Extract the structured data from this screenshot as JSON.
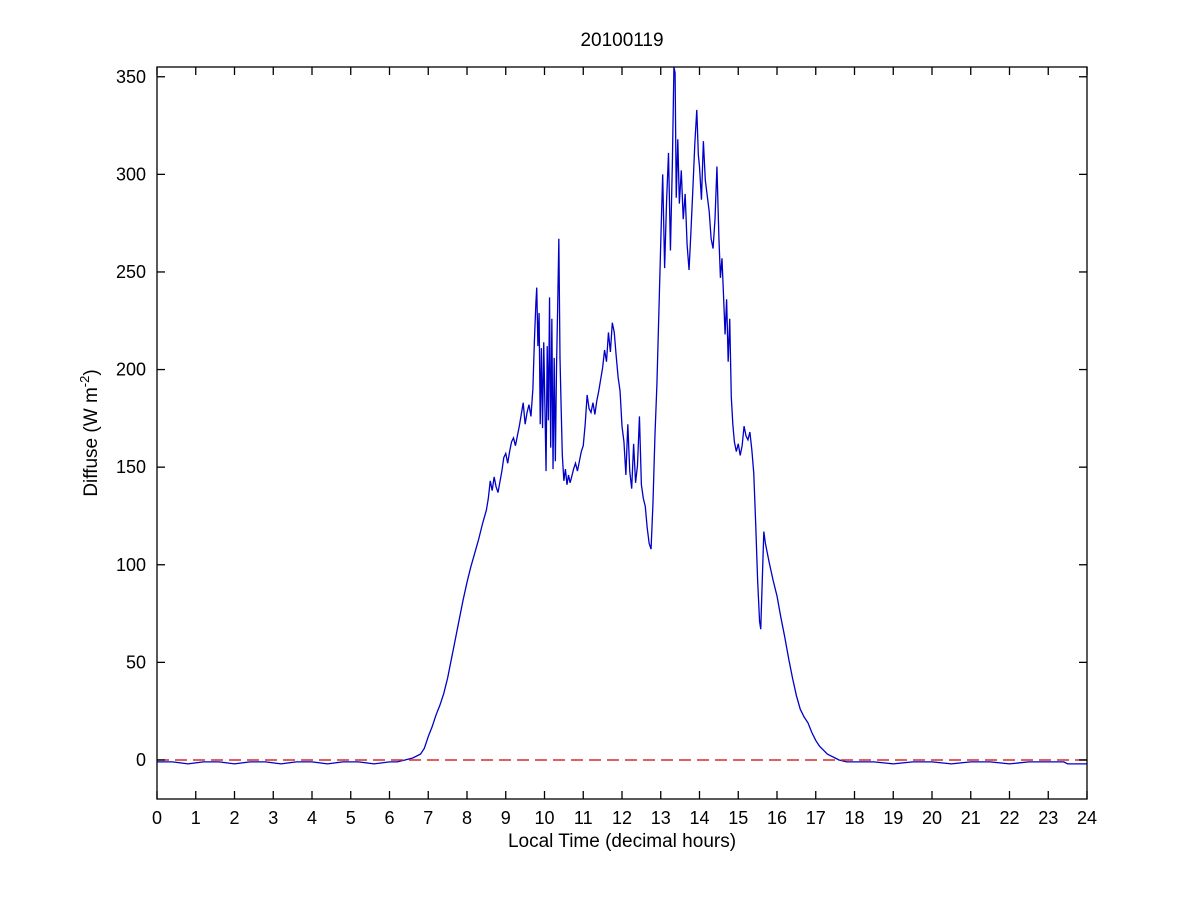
{
  "figure_title": "20100119",
  "chart_data": {
    "type": "line",
    "title": "20100119",
    "xlabel": "Local Time (decimal hours)",
    "ylabel_prefix": "Diffuse (W m",
    "ylabel_sup": "-2",
    "ylabel_suffix": ")",
    "xlim": [
      0,
      24
    ],
    "ylim": [
      -20,
      355
    ],
    "xticks": [
      0,
      1,
      2,
      3,
      4,
      5,
      6,
      7,
      8,
      9,
      10,
      11,
      12,
      13,
      14,
      15,
      16,
      17,
      18,
      19,
      20,
      21,
      22,
      23,
      24
    ],
    "yticks": [
      0,
      50,
      100,
      150,
      200,
      250,
      300,
      350
    ],
    "grid": false,
    "legend": "none",
    "frame_color": "#000000",
    "series": [
      {
        "name": "Diffuse irradiance",
        "color": "#0000C8",
        "line_style": "solid",
        "points": [
          [
            0,
            -1
          ],
          [
            0.4,
            -1
          ],
          [
            0.8,
            -2
          ],
          [
            1.2,
            -1
          ],
          [
            1.6,
            -1
          ],
          [
            2,
            -2
          ],
          [
            2.4,
            -1
          ],
          [
            2.8,
            -1
          ],
          [
            3.2,
            -2
          ],
          [
            3.6,
            -1
          ],
          [
            4,
            -1
          ],
          [
            4.4,
            -2
          ],
          [
            4.8,
            -1
          ],
          [
            5.2,
            -1
          ],
          [
            5.6,
            -2
          ],
          [
            6,
            -1
          ],
          [
            6.2,
            -1
          ],
          [
            6.4,
            0
          ],
          [
            6.6,
            1
          ],
          [
            6.8,
            3
          ],
          [
            6.9,
            6
          ],
          [
            7,
            12
          ],
          [
            7.1,
            17
          ],
          [
            7.2,
            23
          ],
          [
            7.3,
            28
          ],
          [
            7.4,
            34
          ],
          [
            7.5,
            42
          ],
          [
            7.6,
            52
          ],
          [
            7.7,
            62
          ],
          [
            7.8,
            72
          ],
          [
            7.9,
            82
          ],
          [
            8,
            91
          ],
          [
            8.1,
            99
          ],
          [
            8.2,
            106
          ],
          [
            8.3,
            113
          ],
          [
            8.4,
            121
          ],
          [
            8.5,
            128
          ],
          [
            8.55,
            134
          ],
          [
            8.6,
            143
          ],
          [
            8.65,
            138
          ],
          [
            8.7,
            145
          ],
          [
            8.75,
            140
          ],
          [
            8.8,
            137
          ],
          [
            8.9,
            148
          ],
          [
            8.95,
            155
          ],
          [
            9,
            157
          ],
          [
            9.05,
            152
          ],
          [
            9.1,
            158
          ],
          [
            9.15,
            163
          ],
          [
            9.2,
            165
          ],
          [
            9.25,
            161
          ],
          [
            9.3,
            166
          ],
          [
            9.35,
            171
          ],
          [
            9.4,
            177
          ],
          [
            9.45,
            183
          ],
          [
            9.5,
            172
          ],
          [
            9.55,
            178
          ],
          [
            9.6,
            182
          ],
          [
            9.65,
            176
          ],
          [
            9.7,
            190
          ],
          [
            9.74,
            215
          ],
          [
            9.78,
            235
          ],
          [
            9.8,
            242
          ],
          [
            9.83,
            212
          ],
          [
            9.86,
            229
          ],
          [
            9.89,
            172
          ],
          [
            9.92,
            211
          ],
          [
            9.95,
            170
          ],
          [
            9.98,
            214
          ],
          [
            10.01,
            182
          ],
          [
            10.04,
            148
          ],
          [
            10.07,
            212
          ],
          [
            10.1,
            174
          ],
          [
            10.13,
            237
          ],
          [
            10.16,
            160
          ],
          [
            10.19,
            226
          ],
          [
            10.22,
            149
          ],
          [
            10.25,
            206
          ],
          [
            10.28,
            153
          ],
          [
            10.31,
            201
          ],
          [
            10.34,
            232
          ],
          [
            10.37,
            267
          ],
          [
            10.4,
            206
          ],
          [
            10.43,
            180
          ],
          [
            10.46,
            156
          ],
          [
            10.5,
            143
          ],
          [
            10.54,
            149
          ],
          [
            10.58,
            141
          ],
          [
            10.62,
            146
          ],
          [
            10.66,
            142
          ],
          [
            10.7,
            145
          ],
          [
            10.75,
            149
          ],
          [
            10.8,
            152
          ],
          [
            10.85,
            148
          ],
          [
            10.9,
            153
          ],
          [
            10.95,
            158
          ],
          [
            11,
            161
          ],
          [
            11.05,
            172
          ],
          [
            11.1,
            187
          ],
          [
            11.15,
            180
          ],
          [
            11.2,
            178
          ],
          [
            11.25,
            183
          ],
          [
            11.3,
            177
          ],
          [
            11.35,
            184
          ],
          [
            11.4,
            189
          ],
          [
            11.45,
            195
          ],
          [
            11.5,
            201
          ],
          [
            11.55,
            210
          ],
          [
            11.6,
            204
          ],
          [
            11.65,
            219
          ],
          [
            11.7,
            209
          ],
          [
            11.75,
            224
          ],
          [
            11.8,
            219
          ],
          [
            11.85,
            207
          ],
          [
            11.9,
            196
          ],
          [
            11.95,
            189
          ],
          [
            12,
            171
          ],
          [
            12.05,
            163
          ],
          [
            12.1,
            146
          ],
          [
            12.15,
            172
          ],
          [
            12.2,
            148
          ],
          [
            12.25,
            139
          ],
          [
            12.3,
            162
          ],
          [
            12.35,
            142
          ],
          [
            12.4,
            151
          ],
          [
            12.45,
            176
          ],
          [
            12.5,
            141
          ],
          [
            12.55,
            134
          ],
          [
            12.6,
            130
          ],
          [
            12.65,
            119
          ],
          [
            12.7,
            111
          ],
          [
            12.75,
            108
          ],
          [
            12.8,
            132
          ],
          [
            12.85,
            166
          ],
          [
            12.9,
            192
          ],
          [
            12.95,
            228
          ],
          [
            13,
            265
          ],
          [
            13.05,
            300
          ],
          [
            13.1,
            252
          ],
          [
            13.15,
            286
          ],
          [
            13.2,
            311
          ],
          [
            13.25,
            261
          ],
          [
            13.3,
            306
          ],
          [
            13.34,
            355
          ],
          [
            13.37,
            352
          ],
          [
            13.4,
            288
          ],
          [
            13.44,
            318
          ],
          [
            13.48,
            285
          ],
          [
            13.53,
            302
          ],
          [
            13.58,
            277
          ],
          [
            13.63,
            290
          ],
          [
            13.68,
            264
          ],
          [
            13.73,
            251
          ],
          [
            13.78,
            271
          ],
          [
            13.83,
            293
          ],
          [
            13.88,
            316
          ],
          [
            13.93,
            333
          ],
          [
            13.97,
            310
          ],
          [
            14,
            304
          ],
          [
            14.05,
            287
          ],
          [
            14.1,
            317
          ],
          [
            14.15,
            297
          ],
          [
            14.2,
            289
          ],
          [
            14.25,
            281
          ],
          [
            14.3,
            267
          ],
          [
            14.35,
            262
          ],
          [
            14.4,
            277
          ],
          [
            14.45,
            304
          ],
          [
            14.5,
            268
          ],
          [
            14.54,
            247
          ],
          [
            14.58,
            257
          ],
          [
            14.62,
            238
          ],
          [
            14.66,
            218
          ],
          [
            14.7,
            236
          ],
          [
            14.74,
            204
          ],
          [
            14.78,
            226
          ],
          [
            14.82,
            186
          ],
          [
            14.86,
            172
          ],
          [
            14.9,
            163
          ],
          [
            14.95,
            158
          ],
          [
            15,
            162
          ],
          [
            15.05,
            156
          ],
          [
            15.1,
            161
          ],
          [
            15.15,
            171
          ],
          [
            15.2,
            166
          ],
          [
            15.25,
            164
          ],
          [
            15.3,
            168
          ],
          [
            15.35,
            159
          ],
          [
            15.4,
            147
          ],
          [
            15.45,
            121
          ],
          [
            15.5,
            92
          ],
          [
            15.55,
            71
          ],
          [
            15.58,
            67
          ],
          [
            15.62,
            92
          ],
          [
            15.66,
            117
          ],
          [
            15.7,
            111
          ],
          [
            15.75,
            106
          ],
          [
            15.8,
            101
          ],
          [
            15.9,
            92
          ],
          [
            16,
            84
          ],
          [
            16.1,
            73
          ],
          [
            16.2,
            63
          ],
          [
            16.3,
            52
          ],
          [
            16.4,
            42
          ],
          [
            16.5,
            33
          ],
          [
            16.6,
            26
          ],
          [
            16.7,
            22
          ],
          [
            16.8,
            19
          ],
          [
            16.9,
            14
          ],
          [
            17,
            10
          ],
          [
            17.1,
            7
          ],
          [
            17.2,
            5
          ],
          [
            17.3,
            3
          ],
          [
            17.4,
            2
          ],
          [
            17.5,
            1
          ],
          [
            17.6,
            0
          ],
          [
            17.8,
            -1
          ],
          [
            18,
            -1
          ],
          [
            18.5,
            -1
          ],
          [
            19,
            -2
          ],
          [
            19.5,
            -1
          ],
          [
            20,
            -1
          ],
          [
            20.5,
            -2
          ],
          [
            21,
            -1
          ],
          [
            21.5,
            -1
          ],
          [
            22,
            -2
          ],
          [
            22.5,
            -1
          ],
          [
            23,
            -1
          ],
          [
            23.4,
            -1
          ],
          [
            23.5,
            -2
          ],
          [
            24,
            -2
          ]
        ]
      },
      {
        "name": "Zero reference",
        "color": "#D42C2C",
        "line_style": "dashed",
        "points": [
          [
            0,
            0
          ],
          [
            24,
            0
          ]
        ]
      }
    ]
  }
}
